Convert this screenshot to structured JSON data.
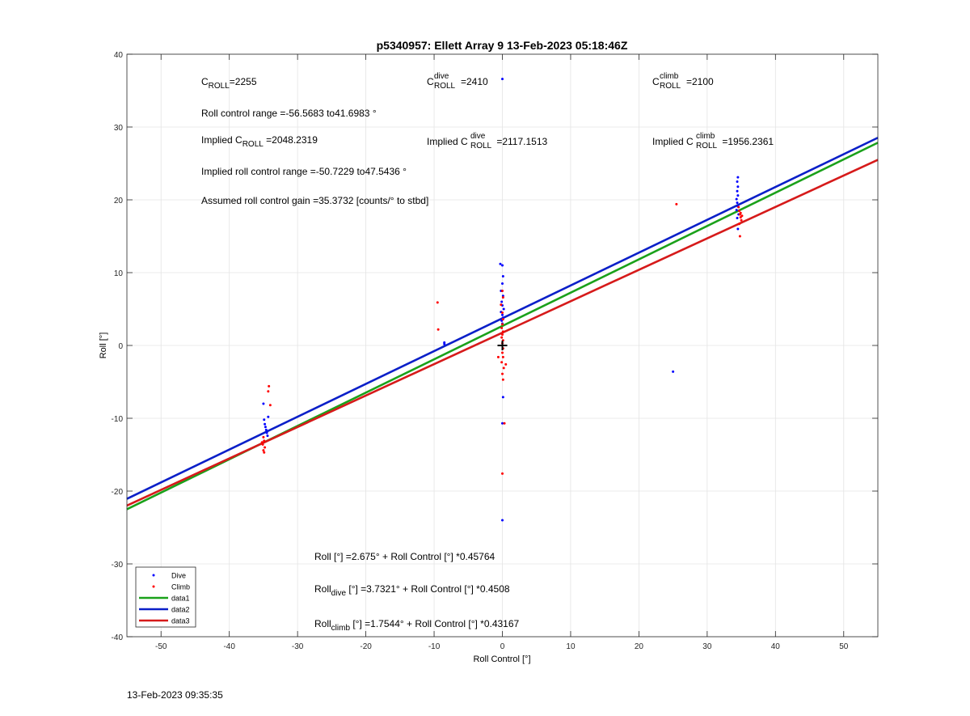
{
  "chart_data": {
    "type": "scatter",
    "title": "p5340957: Ellett Array 9 13-Feb-2023 05:18:46Z",
    "xlabel": "Roll Control [°]",
    "ylabel": "Roll [°]",
    "xlim": [
      -55,
      55
    ],
    "ylim": [
      -40,
      40
    ],
    "xticks": [
      -50,
      -40,
      -30,
      -20,
      -10,
      0,
      10,
      20,
      30,
      40,
      50
    ],
    "yticks": [
      -40,
      -30,
      -20,
      -10,
      0,
      10,
      20,
      30,
      40
    ],
    "grid": true,
    "legend_position": "bottom-left",
    "legend": [
      "Dive",
      "Climb",
      "data1",
      "data2",
      "data3"
    ],
    "colors": {
      "dive": "#0000ff",
      "climb": "#ff0000",
      "data1": "#1aa11a",
      "data2": "#0a1fc8",
      "data3": "#d61a1a",
      "marker": "#000000"
    },
    "series": [
      {
        "name": "Dive",
        "kind": "points",
        "points": [
          [
            -35.0,
            -8.0
          ],
          [
            -34.9,
            -10.2
          ],
          [
            -34.8,
            -10.8
          ],
          [
            -34.7,
            -11.2
          ],
          [
            -34.6,
            -11.6
          ],
          [
            -34.5,
            -12.0
          ],
          [
            -34.4,
            -12.4
          ],
          [
            -34.3,
            -9.8
          ],
          [
            -8.5,
            0.2
          ],
          [
            -8.5,
            0.4
          ],
          [
            -0.3,
            11.2
          ],
          [
            0.0,
            11.0
          ],
          [
            0.1,
            9.5
          ],
          [
            0.0,
            8.5
          ],
          [
            -0.2,
            7.5
          ],
          [
            0.1,
            6.8
          ],
          [
            -0.1,
            6.0
          ],
          [
            0.0,
            5.5
          ],
          [
            0.2,
            5.0
          ],
          [
            -0.2,
            4.6
          ],
          [
            0.0,
            4.2
          ],
          [
            0.1,
            3.8
          ],
          [
            -0.1,
            3.4
          ],
          [
            0.0,
            3.0
          ],
          [
            0.0,
            36.6
          ],
          [
            0.0,
            -24.0
          ],
          [
            0.1,
            -7.1
          ],
          [
            0.0,
            -10.7
          ],
          [
            25.0,
            -3.6
          ],
          [
            34.5,
            23.1
          ],
          [
            34.4,
            22.5
          ],
          [
            34.5,
            21.8
          ],
          [
            34.4,
            21.2
          ],
          [
            34.5,
            20.6
          ],
          [
            34.3,
            20.1
          ],
          [
            34.4,
            19.6
          ],
          [
            34.5,
            19.1
          ],
          [
            34.3,
            18.6
          ],
          [
            34.6,
            18.0
          ],
          [
            34.4,
            17.5
          ],
          [
            34.5,
            16.0
          ]
        ]
      },
      {
        "name": "Climb",
        "kind": "points",
        "points": [
          [
            -34.2,
            -5.6
          ],
          [
            -34.3,
            -6.3
          ],
          [
            -34.0,
            -8.2
          ],
          [
            -35.0,
            -12.6
          ],
          [
            -34.9,
            -13.1
          ],
          [
            -35.1,
            -13.6
          ],
          [
            -34.8,
            -14.0
          ],
          [
            -35.0,
            -14.4
          ],
          [
            -34.9,
            -14.7
          ],
          [
            -35.2,
            -13.3
          ],
          [
            -9.5,
            5.9
          ],
          [
            -9.4,
            2.2
          ],
          [
            0.0,
            7.5
          ],
          [
            0.1,
            6.6
          ],
          [
            -0.2,
            5.6
          ],
          [
            0.0,
            4.5
          ],
          [
            0.1,
            3.6
          ],
          [
            0.0,
            2.9
          ],
          [
            -0.1,
            2.4
          ],
          [
            0.1,
            1.9
          ],
          [
            0.0,
            1.5
          ],
          [
            -0.1,
            1.1
          ],
          [
            0.1,
            0.7
          ],
          [
            0.0,
            0.3
          ],
          [
            0.1,
            -0.4
          ],
          [
            0.0,
            -1.0
          ],
          [
            0.1,
            -1.6
          ],
          [
            -0.1,
            -2.3
          ],
          [
            0.2,
            -3.1
          ],
          [
            0.0,
            -3.9
          ],
          [
            0.1,
            -4.7
          ],
          [
            0.0,
            -17.6
          ],
          [
            0.3,
            -10.7
          ],
          [
            -0.6,
            -1.6
          ],
          [
            0.5,
            -2.6
          ],
          [
            25.5,
            19.4
          ],
          [
            34.6,
            19.0
          ],
          [
            34.7,
            18.5
          ],
          [
            34.8,
            18.0
          ],
          [
            34.9,
            17.6
          ],
          [
            35.0,
            17.2
          ],
          [
            34.7,
            16.7
          ],
          [
            34.8,
            15.0
          ],
          [
            35.1,
            17.8
          ],
          [
            34.9,
            18.2
          ]
        ]
      },
      {
        "name": "data1",
        "kind": "line",
        "intercept": 2.675,
        "slope": 0.45764
      },
      {
        "name": "data2",
        "kind": "line",
        "intercept": 3.7321,
        "slope": 0.4508
      },
      {
        "name": "data3",
        "kind": "line",
        "intercept": 1.7544,
        "slope": 0.43167
      }
    ],
    "center_marker": [
      0,
      0
    ]
  },
  "annotations": {
    "c_roll": {
      "prefix": "C",
      "sub": "ROLL",
      "value": "=2255"
    },
    "c_roll_dive": {
      "prefix": "C",
      "sup": "dive",
      "sub": "ROLL",
      "value": "=2410"
    },
    "c_roll_climb": {
      "prefix": "C",
      "sup": "climb",
      "sub": "ROLL",
      "value": "=2100"
    },
    "roll_control_range": "Roll control range =-56.5683 to41.6983 °",
    "implied_c_roll": {
      "prefix": "Implied C",
      "sub": "ROLL",
      "value": " =2048.2319"
    },
    "implied_c_roll_dive": {
      "prefix": "Implied C",
      "sup": "dive",
      "sub": "ROLL",
      "value": " =2117.1513"
    },
    "implied_c_roll_climb": {
      "prefix": "Implied C",
      "sup": "climb",
      "sub": "ROLL",
      "value": " =1956.2361"
    },
    "implied_roll_control_range": "Implied roll control range =-50.7229 to47.5436 °",
    "assumed_gain": "Assumed roll control gain =35.3732 [counts/° to stbd]",
    "fit_all": "Roll [°] =2.675° + Roll Control [°] *0.45764",
    "fit_dive": {
      "prefix": "Roll",
      "sub": "dive",
      "value": " [°] =3.7321° + Roll Control [°] *0.4508"
    },
    "fit_climb": {
      "prefix": "Roll",
      "sub": "climb",
      "value": " [°] =1.7544° + Roll Control [°] *0.43167"
    }
  },
  "footer": {
    "timestamp": "13-Feb-2023 09:35:35"
  }
}
